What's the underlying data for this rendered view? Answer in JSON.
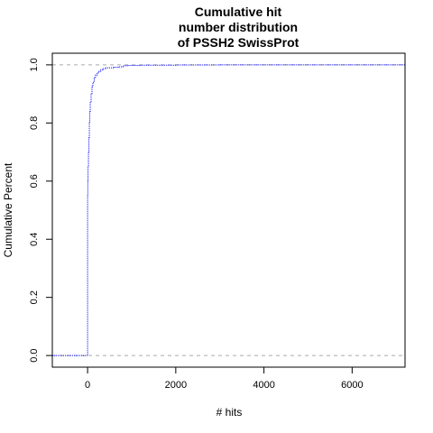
{
  "chart_data": {
    "type": "line",
    "title_lines": [
      "Cumulative hit",
      "number distribution",
      "of PSSH2 SwissProt"
    ],
    "xlabel": "# hits",
    "ylabel": "Cumulative Percent",
    "xlim": [
      -800,
      7200
    ],
    "ylim": [
      -0.04,
      1.04
    ],
    "x_ticks": [
      0,
      2000,
      4000,
      6000
    ],
    "x_tick_labels": [
      "0",
      "2000",
      "4000",
      "6000"
    ],
    "y_ticks": [
      0.0,
      0.2,
      0.4,
      0.6,
      0.8,
      1.0
    ],
    "y_tick_labels": [
      "0.0",
      "0.2",
      "0.4",
      "0.6",
      "0.8",
      "1.0"
    ],
    "reference_lines_y": [
      0.0,
      1.0
    ],
    "series": [
      {
        "color": "#0000ff",
        "line_style": "dotted-step",
        "x": [
          -800,
          0,
          0,
          5,
          10,
          20,
          30,
          40,
          50,
          60,
          80,
          100,
          120,
          150,
          180,
          220,
          260,
          300,
          350,
          420,
          500,
          600,
          700,
          800,
          900,
          1200,
          2000,
          3000,
          4000,
          5000,
          6000,
          7200
        ],
        "y": [
          0.0,
          0.0,
          0.55,
          0.6,
          0.65,
          0.7,
          0.75,
          0.8,
          0.84,
          0.87,
          0.9,
          0.925,
          0.94,
          0.955,
          0.965,
          0.973,
          0.978,
          0.983,
          0.987,
          0.99,
          0.99,
          0.992,
          0.993,
          0.997,
          0.998,
          0.999,
          0.9995,
          1.0,
          1.0,
          1.0,
          1.0,
          1.0
        ]
      }
    ]
  }
}
